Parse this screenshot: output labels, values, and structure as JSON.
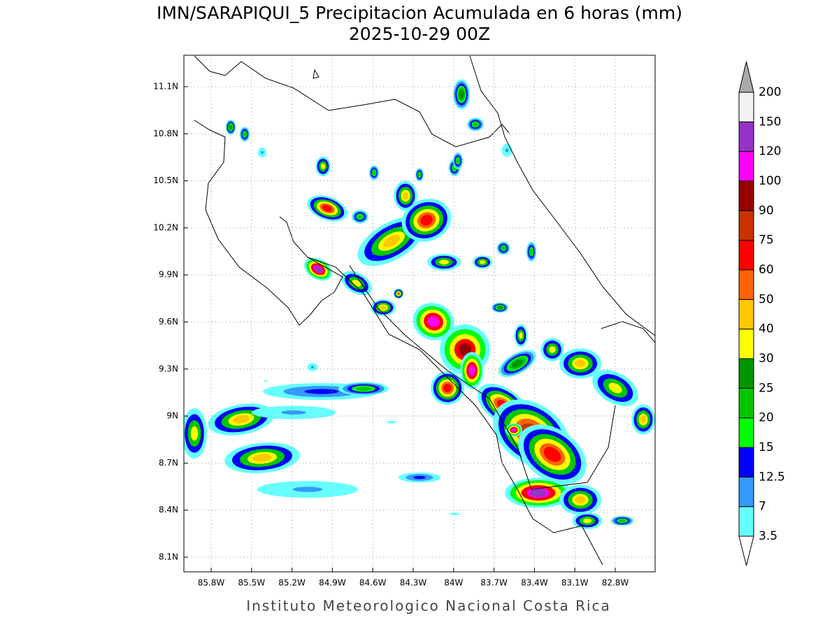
{
  "title": "IMN/SARAPIQUI_5 Precipitacion Acumulada en 6 horas (mm)",
  "subtitle": "2025-10-29 00Z",
  "lon_ticks": [
    "85.8W",
    "85.5W",
    "85.2W",
    "84.9W",
    "84.6W",
    "84.3W",
    "84W",
    "83.7W",
    "83.4W",
    "83.1W",
    "82.8W"
  ],
  "lat_ticks": [
    "11.1N",
    "10.8N",
    "10.5N",
    "10.2N",
    "9.9N",
    "9.6N",
    "9.3N",
    "9N",
    "8.7N",
    "8.4N",
    "8.1N"
  ],
  "colorbar": {
    "levels": [
      3.5,
      7,
      12.5,
      15,
      20,
      25,
      30,
      40,
      50,
      60,
      75,
      90,
      100,
      120,
      150,
      200
    ],
    "colors": [
      "#66ffff",
      "#3399ff",
      "#0000ff",
      "#00ff00",
      "#00c800",
      "#009600",
      "#ffff00",
      "#ffc800",
      "#ff6400",
      "#ff0000",
      "#c83200",
      "#960000",
      "#ff00ff",
      "#9632c8",
      "#f2f2f2"
    ],
    "under_color": "#ffffff",
    "over_color": "#aaaaaa"
  },
  "footer": "Instituto Meteorologico Nacional Costa Rica"
}
